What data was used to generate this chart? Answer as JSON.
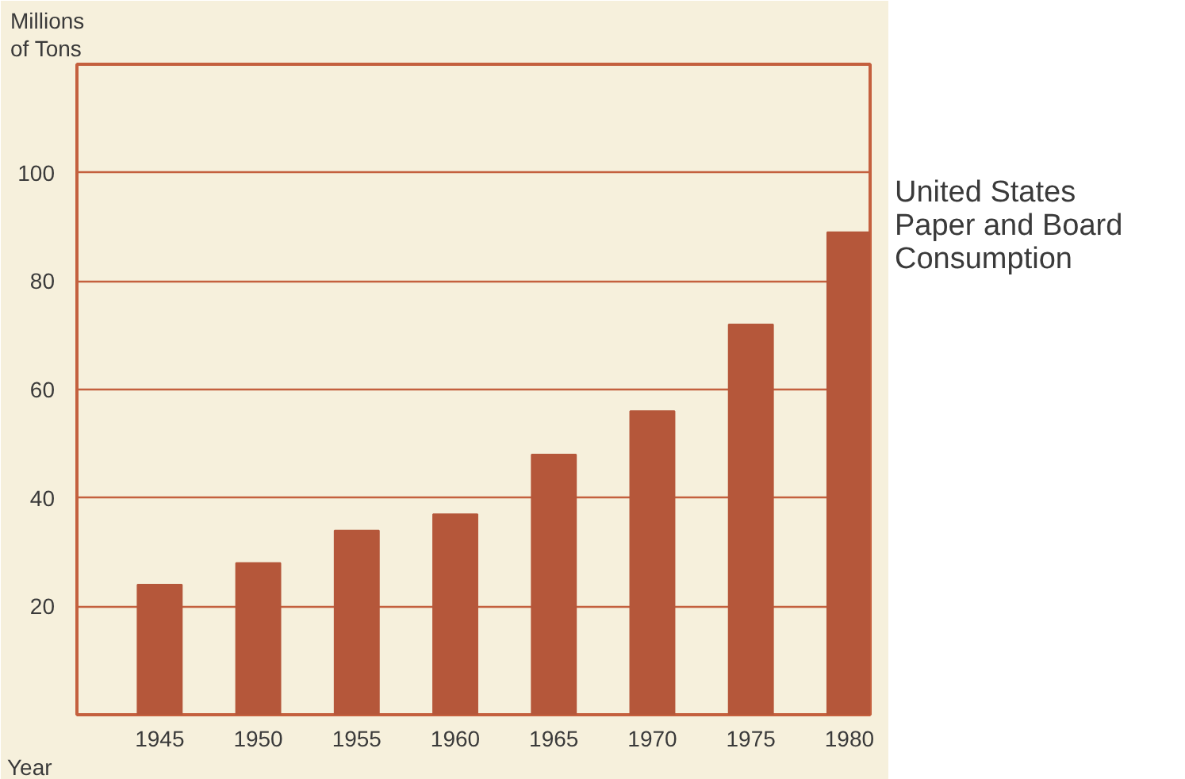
{
  "chart_data": {
    "type": "bar",
    "title": "United States\nPaper and Board\nConsumption",
    "ylabel": "Millions\nof Tons",
    "xlabel": "Year",
    "categories": [
      "1945",
      "1950",
      "1955",
      "1960",
      "1965",
      "1970",
      "1975",
      "1980"
    ],
    "values": [
      24,
      28,
      34,
      37,
      48,
      56,
      72,
      89
    ],
    "color": "#b5573a",
    "ylim": [
      0,
      120
    ],
    "yticks": [
      20,
      40,
      60,
      80,
      100
    ],
    "grid": "y"
  }
}
